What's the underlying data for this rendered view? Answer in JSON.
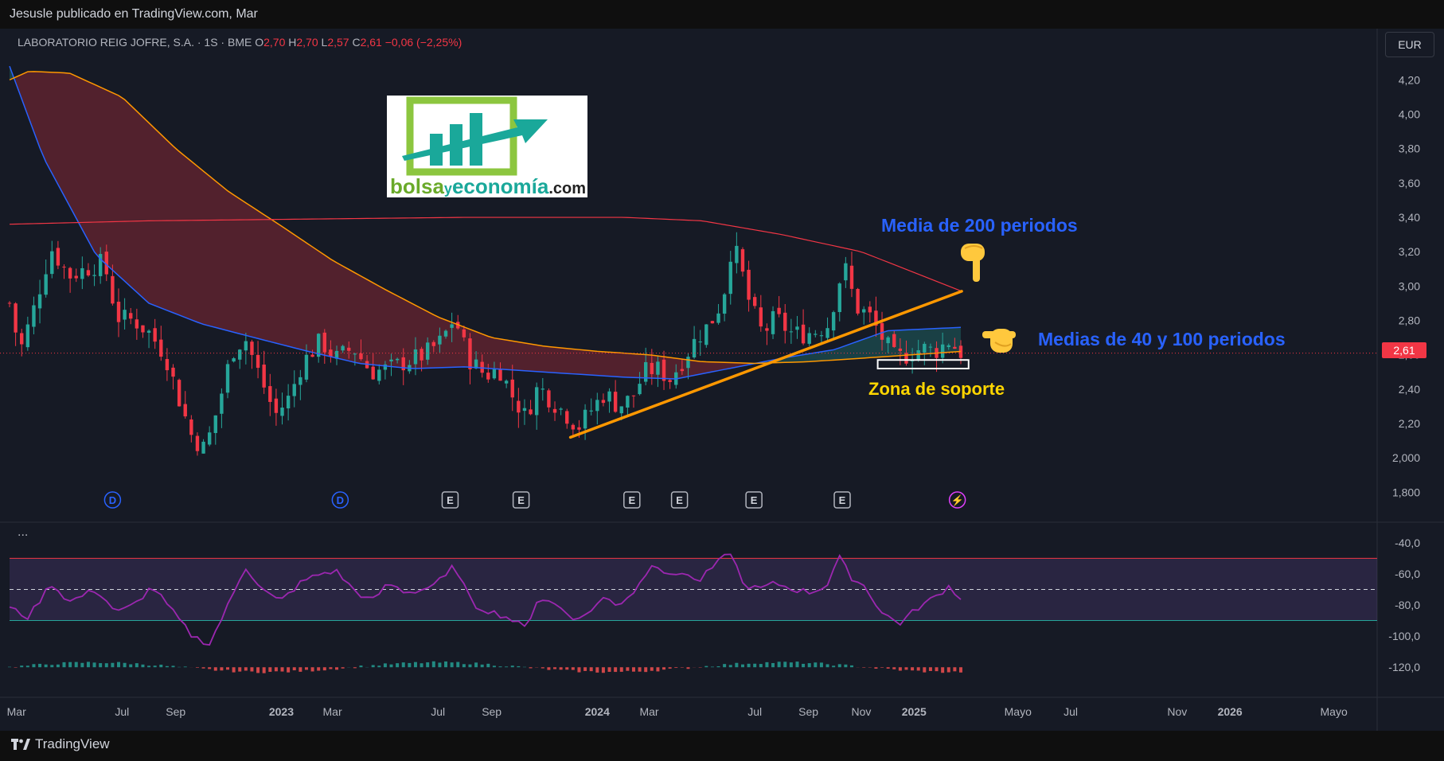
{
  "header": {
    "publisher": "Jesusle publicado en TradingView.com, Mar"
  },
  "legend": {
    "name": "LABORATORIO REIG JOFRE, S.A. · 1S · BME",
    "o_label": "O",
    "o": "2,70",
    "h_label": "H",
    "h": "2,70",
    "l_label": "L",
    "l": "2,57",
    "c_label": "C",
    "c": "2,61",
    "change": "−0,06 (−2,25%)"
  },
  "currency": "EUR",
  "price_tag": "2,61",
  "indicator_dots": "...",
  "footer": {
    "brand": "TradingView"
  },
  "logo": {
    "part1": "bolsa",
    "part2": "y",
    "part3": "economía",
    "part4": ".com"
  },
  "annotations": {
    "ma200": "Media de 200 periodos",
    "ma40_100": "Medias de 40 y 100 periodos",
    "support": "Zona de soporte"
  },
  "colors": {
    "up": "#26a69a",
    "down": "#f23645",
    "ma40": "#2962ff",
    "ma100": "#ff9800",
    "ma200": "#f23645",
    "rsi": "#9c27b0",
    "trendline": "#ff9800",
    "annotation_blue": "#2962ff",
    "annotation_yellow": "#ffd600"
  },
  "chart_data": [
    {
      "type": "candlestick",
      "title": "LABORATORIO REIG JOFRE, S.A. · 1S · BME",
      "ylim": [
        1.7,
        4.35
      ],
      "x_range": [
        "2022-02-21",
        "2026-06-20"
      ],
      "y_ticks": [
        "4,20",
        "4,00",
        "3,80",
        "3,60",
        "3,40",
        "3,20",
        "3,00",
        "2,80",
        "2,60",
        "2,40",
        "2,20",
        "2,000",
        "1,800"
      ],
      "y_tick_values": [
        4.2,
        4.0,
        3.8,
        3.6,
        3.4,
        3.2,
        3.0,
        2.8,
        2.6,
        2.4,
        2.2,
        2.0,
        1.8
      ],
      "x_ticks": [
        {
          "label": "Mar",
          "date": "2022-03-01",
          "bold": false
        },
        {
          "label": "Jul",
          "date": "2022-07-01",
          "bold": false
        },
        {
          "label": "Sep",
          "date": "2022-09-01",
          "bold": false
        },
        {
          "label": "2023",
          "date": "2023-01-01",
          "bold": true
        },
        {
          "label": "Mar",
          "date": "2023-03-01",
          "bold": false
        },
        {
          "label": "Jul",
          "date": "2023-07-01",
          "bold": false
        },
        {
          "label": "Sep",
          "date": "2023-09-01",
          "bold": false
        },
        {
          "label": "2024",
          "date": "2024-01-01",
          "bold": true
        },
        {
          "label": "Mar",
          "date": "2024-03-01",
          "bold": false
        },
        {
          "label": "Jul",
          "date": "2024-07-01",
          "bold": false
        },
        {
          "label": "Sep",
          "date": "2024-09-01",
          "bold": false
        },
        {
          "label": "Nov",
          "date": "2024-11-01",
          "bold": false
        },
        {
          "label": "2025",
          "date": "2025-01-01",
          "bold": true
        },
        {
          "label": "Mayo",
          "date": "2025-05-01",
          "bold": false
        },
        {
          "label": "Jul",
          "date": "2025-07-01",
          "bold": false
        },
        {
          "label": "Nov",
          "date": "2025-11-01",
          "bold": false
        },
        {
          "label": "2026",
          "date": "2026-01-01",
          "bold": true
        },
        {
          "label": "Mayo",
          "date": "2026-05-01",
          "bold": false
        }
      ],
      "close_anchors": [
        [
          "2022-02-21",
          2.9
        ],
        [
          "2022-03-05",
          2.62
        ],
        [
          "2022-03-20",
          2.85
        ],
        [
          "2022-04-10",
          3.22
        ],
        [
          "2022-05-01",
          3.06
        ],
        [
          "2022-05-20",
          3.1
        ],
        [
          "2022-06-10",
          3.14
        ],
        [
          "2022-06-25",
          2.82
        ],
        [
          "2022-07-15",
          2.8
        ],
        [
          "2022-08-01",
          2.73
        ],
        [
          "2022-08-20",
          2.6
        ],
        [
          "2022-09-05",
          2.34
        ],
        [
          "2022-09-20",
          2.12
        ],
        [
          "2022-10-05",
          2.05
        ],
        [
          "2022-10-20",
          2.3
        ],
        [
          "2022-11-05",
          2.62
        ],
        [
          "2022-11-20",
          2.7
        ],
        [
          "2022-12-10",
          2.44
        ],
        [
          "2022-12-25",
          2.25
        ],
        [
          "2023-01-10",
          2.35
        ],
        [
          "2023-01-25",
          2.55
        ],
        [
          "2023-02-15",
          2.68
        ],
        [
          "2023-03-05",
          2.58
        ],
        [
          "2023-03-25",
          2.64
        ],
        [
          "2023-04-15",
          2.5
        ],
        [
          "2023-05-05",
          2.52
        ],
        [
          "2023-05-25",
          2.56
        ],
        [
          "2023-06-15",
          2.6
        ],
        [
          "2023-07-05",
          2.68
        ],
        [
          "2023-07-20",
          2.82
        ],
        [
          "2023-08-05",
          2.58
        ],
        [
          "2023-08-25",
          2.48
        ],
        [
          "2023-09-10",
          2.52
        ],
        [
          "2023-09-25",
          2.36
        ],
        [
          "2023-10-10",
          2.24
        ],
        [
          "2023-10-25",
          2.42
        ],
        [
          "2023-11-10",
          2.33
        ],
        [
          "2023-11-25",
          2.26
        ],
        [
          "2023-12-10",
          2.18
        ],
        [
          "2023-12-25",
          2.28
        ],
        [
          "2024-01-10",
          2.38
        ],
        [
          "2024-01-25",
          2.3
        ],
        [
          "2024-02-10",
          2.35
        ],
        [
          "2024-02-25",
          2.5
        ],
        [
          "2024-03-10",
          2.52
        ],
        [
          "2024-03-25",
          2.46
        ],
        [
          "2024-04-10",
          2.58
        ],
        [
          "2024-04-25",
          2.7
        ],
        [
          "2024-05-10",
          2.78
        ],
        [
          "2024-05-25",
          2.92
        ],
        [
          "2024-06-05",
          3.26
        ],
        [
          "2024-06-15",
          3.1
        ],
        [
          "2024-06-25",
          2.9
        ],
        [
          "2024-07-10",
          2.72
        ],
        [
          "2024-07-25",
          2.82
        ],
        [
          "2024-08-10",
          2.73
        ],
        [
          "2024-08-25",
          2.72
        ],
        [
          "2024-09-10",
          2.74
        ],
        [
          "2024-09-25",
          2.78
        ],
        [
          "2024-10-05",
          3.02
        ],
        [
          "2024-10-15",
          3.1
        ],
        [
          "2024-10-25",
          2.88
        ],
        [
          "2024-11-10",
          2.83
        ],
        [
          "2024-11-25",
          2.7
        ],
        [
          "2024-12-10",
          2.58
        ],
        [
          "2024-12-25",
          2.6
        ],
        [
          "2025-01-10",
          2.64
        ],
        [
          "2025-01-25",
          2.62
        ],
        [
          "2025-02-10",
          2.68
        ],
        [
          "2025-02-25",
          2.61
        ]
      ],
      "ma40_anchors": [
        [
          "2022-02-21",
          4.28
        ],
        [
          "2022-04-01",
          3.75
        ],
        [
          "2022-06-01",
          3.18
        ],
        [
          "2022-08-01",
          2.9
        ],
        [
          "2022-10-01",
          2.78
        ],
        [
          "2022-12-01",
          2.7
        ],
        [
          "2023-02-01",
          2.62
        ],
        [
          "2023-04-01",
          2.55
        ],
        [
          "2023-06-01",
          2.52
        ],
        [
          "2023-08-01",
          2.53
        ],
        [
          "2023-10-01",
          2.51
        ],
        [
          "2023-12-01",
          2.49
        ],
        [
          "2024-02-01",
          2.47
        ],
        [
          "2024-04-01",
          2.46
        ],
        [
          "2024-06-01",
          2.52
        ],
        [
          "2024-08-01",
          2.58
        ],
        [
          "2024-10-01",
          2.63
        ],
        [
          "2024-12-01",
          2.74
        ],
        [
          "2025-02-25",
          2.76
        ]
      ],
      "ma100_anchors": [
        [
          "2022-02-21",
          4.2
        ],
        [
          "2022-03-15",
          4.25
        ],
        [
          "2022-05-01",
          4.24
        ],
        [
          "2022-07-01",
          4.1
        ],
        [
          "2022-09-01",
          3.8
        ],
        [
          "2022-11-01",
          3.55
        ],
        [
          "2023-01-01",
          3.35
        ],
        [
          "2023-03-01",
          3.15
        ],
        [
          "2023-05-01",
          2.98
        ],
        [
          "2023-07-01",
          2.82
        ],
        [
          "2023-09-01",
          2.7
        ],
        [
          "2023-11-01",
          2.65
        ],
        [
          "2024-01-01",
          2.62
        ],
        [
          "2024-03-01",
          2.6
        ],
        [
          "2024-05-01",
          2.56
        ],
        [
          "2024-07-01",
          2.55
        ],
        [
          "2024-09-01",
          2.56
        ],
        [
          "2024-11-01",
          2.58
        ],
        [
          "2025-02-25",
          2.62
        ]
      ],
      "ma200_anchors": [
        [
          "2022-02-21",
          3.36
        ],
        [
          "2022-08-01",
          3.38
        ],
        [
          "2023-02-01",
          3.39
        ],
        [
          "2023-08-01",
          3.4
        ],
        [
          "2024-02-01",
          3.4
        ],
        [
          "2024-05-01",
          3.38
        ],
        [
          "2024-08-01",
          3.3
        ],
        [
          "2024-11-01",
          3.2
        ],
        [
          "2025-02-25",
          2.97
        ]
      ],
      "trendline": [
        [
          "2023-12-01",
          2.12
        ],
        [
          "2025-02-25",
          2.97
        ]
      ],
      "support_zone": {
        "x0": "2024-11-20",
        "x1": "2025-03-05",
        "y0": 2.52,
        "y1": 2.57
      },
      "events": [
        {
          "label": "D",
          "date": "2022-06-20"
        },
        {
          "label": "D",
          "date": "2023-03-10"
        },
        {
          "label": "E",
          "date": "2023-07-15"
        },
        {
          "label": "E",
          "date": "2023-10-05"
        },
        {
          "label": "E",
          "date": "2024-02-10"
        },
        {
          "label": "E",
          "date": "2024-04-05"
        },
        {
          "label": "E",
          "date": "2024-06-30"
        },
        {
          "label": "E",
          "date": "2024-10-10"
        },
        {
          "label": "⚡",
          "date": "2025-02-20"
        }
      ]
    },
    {
      "type": "line",
      "ylim": [
        -125,
        -35
      ],
      "y_ticks": [
        "-40,0",
        "-60,0",
        "-80,0",
        "-100,0",
        "-120,0"
      ],
      "y_tick_values": [
        -40,
        -60,
        -80,
        -100,
        -120
      ],
      "bands": {
        "upper": -50,
        "middle": -70,
        "lower": -90
      },
      "rsi_anchors": [
        [
          "2022-02-21",
          -82
        ],
        [
          "2022-03-15",
          -88
        ],
        [
          "2022-04-10",
          -66
        ],
        [
          "2022-05-01",
          -78
        ],
        [
          "2022-06-01",
          -70
        ],
        [
          "2022-06-25",
          -85
        ],
        [
          "2022-07-15",
          -80
        ],
        [
          "2022-08-05",
          -68
        ],
        [
          "2022-08-25",
          -82
        ],
        [
          "2022-09-20",
          -100
        ],
        [
          "2022-10-10",
          -105
        ],
        [
          "2022-11-05",
          -75
        ],
        [
          "2022-11-20",
          -55
        ],
        [
          "2022-12-10",
          -70
        ],
        [
          "2022-12-30",
          -78
        ],
        [
          "2023-01-25",
          -65
        ],
        [
          "2023-02-15",
          -60
        ],
        [
          "2023-03-05",
          -58
        ],
        [
          "2023-03-25",
          -70
        ],
        [
          "2023-04-15",
          -78
        ],
        [
          "2023-05-05",
          -66
        ],
        [
          "2023-05-25",
          -72
        ],
        [
          "2023-06-15",
          -70
        ],
        [
          "2023-07-10",
          -62
        ],
        [
          "2023-07-20",
          -54
        ],
        [
          "2023-08-10",
          -80
        ],
        [
          "2023-08-30",
          -84
        ],
        [
          "2023-09-20",
          -88
        ],
        [
          "2023-10-10",
          -95
        ],
        [
          "2023-10-25",
          -75
        ],
        [
          "2023-11-15",
          -80
        ],
        [
          "2023-12-10",
          -90
        ],
        [
          "2024-01-10",
          -75
        ],
        [
          "2024-01-25",
          -80
        ],
        [
          "2024-02-15",
          -70
        ],
        [
          "2024-03-05",
          -52
        ],
        [
          "2024-03-25",
          -62
        ],
        [
          "2024-04-10",
          -58
        ],
        [
          "2024-04-25",
          -66
        ],
        [
          "2024-05-15",
          -55
        ],
        [
          "2024-06-05",
          -45
        ],
        [
          "2024-06-15",
          -66
        ],
        [
          "2024-07-05",
          -70
        ],
        [
          "2024-07-25",
          -66
        ],
        [
          "2024-08-15",
          -70
        ],
        [
          "2024-09-05",
          -72
        ],
        [
          "2024-09-25",
          -66
        ],
        [
          "2024-10-05",
          -48
        ],
        [
          "2024-10-20",
          -62
        ],
        [
          "2024-11-05",
          -68
        ],
        [
          "2024-11-25",
          -85
        ],
        [
          "2024-12-15",
          -92
        ],
        [
          "2025-01-05",
          -82
        ],
        [
          "2025-01-25",
          -75
        ],
        [
          "2025-02-10",
          -68
        ],
        [
          "2025-02-25",
          -76
        ]
      ]
    }
  ]
}
